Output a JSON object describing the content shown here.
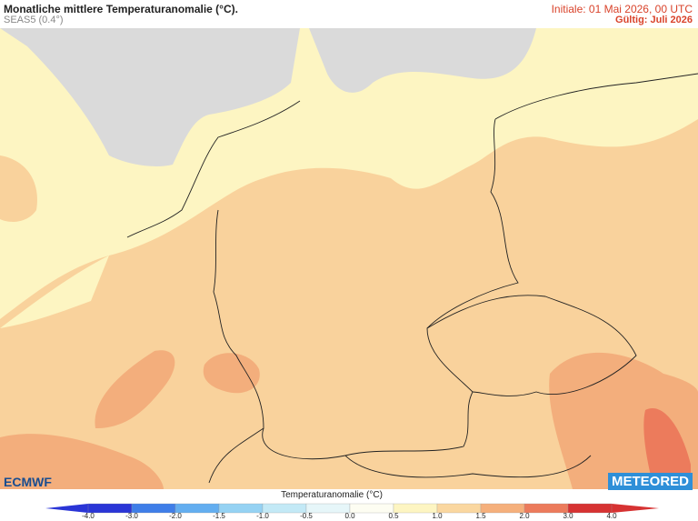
{
  "header": {
    "title": "Monatliche mittlere Temperaturanomalie (°C).",
    "subtitle": "SEAS5 (0.4°)",
    "initial": "Initiale: 01 Mai 2026, 00 UTC",
    "valid": "Gültig: Juli 2026"
  },
  "legend": {
    "title": "Temperaturanomalie (°C)",
    "ticks": [
      "-4.0",
      "-3.0",
      "-2.0",
      "-1.5",
      "-1.0",
      "-0.5",
      "0.0",
      "0.5",
      "1.0",
      "1.5",
      "2.0",
      "3.0",
      "4.0"
    ],
    "colors": [
      "#2a35d6",
      "#3f7ee8",
      "#63aef0",
      "#95d2f3",
      "#c3e9f6",
      "#e6f6f9",
      "#fdfdf2",
      "#fdf5c2",
      "#fad7a0",
      "#f5b07c",
      "#ec7b5c",
      "#d63232"
    ]
  },
  "logos": {
    "left": "ECMWF",
    "right": "METEORED"
  }
}
